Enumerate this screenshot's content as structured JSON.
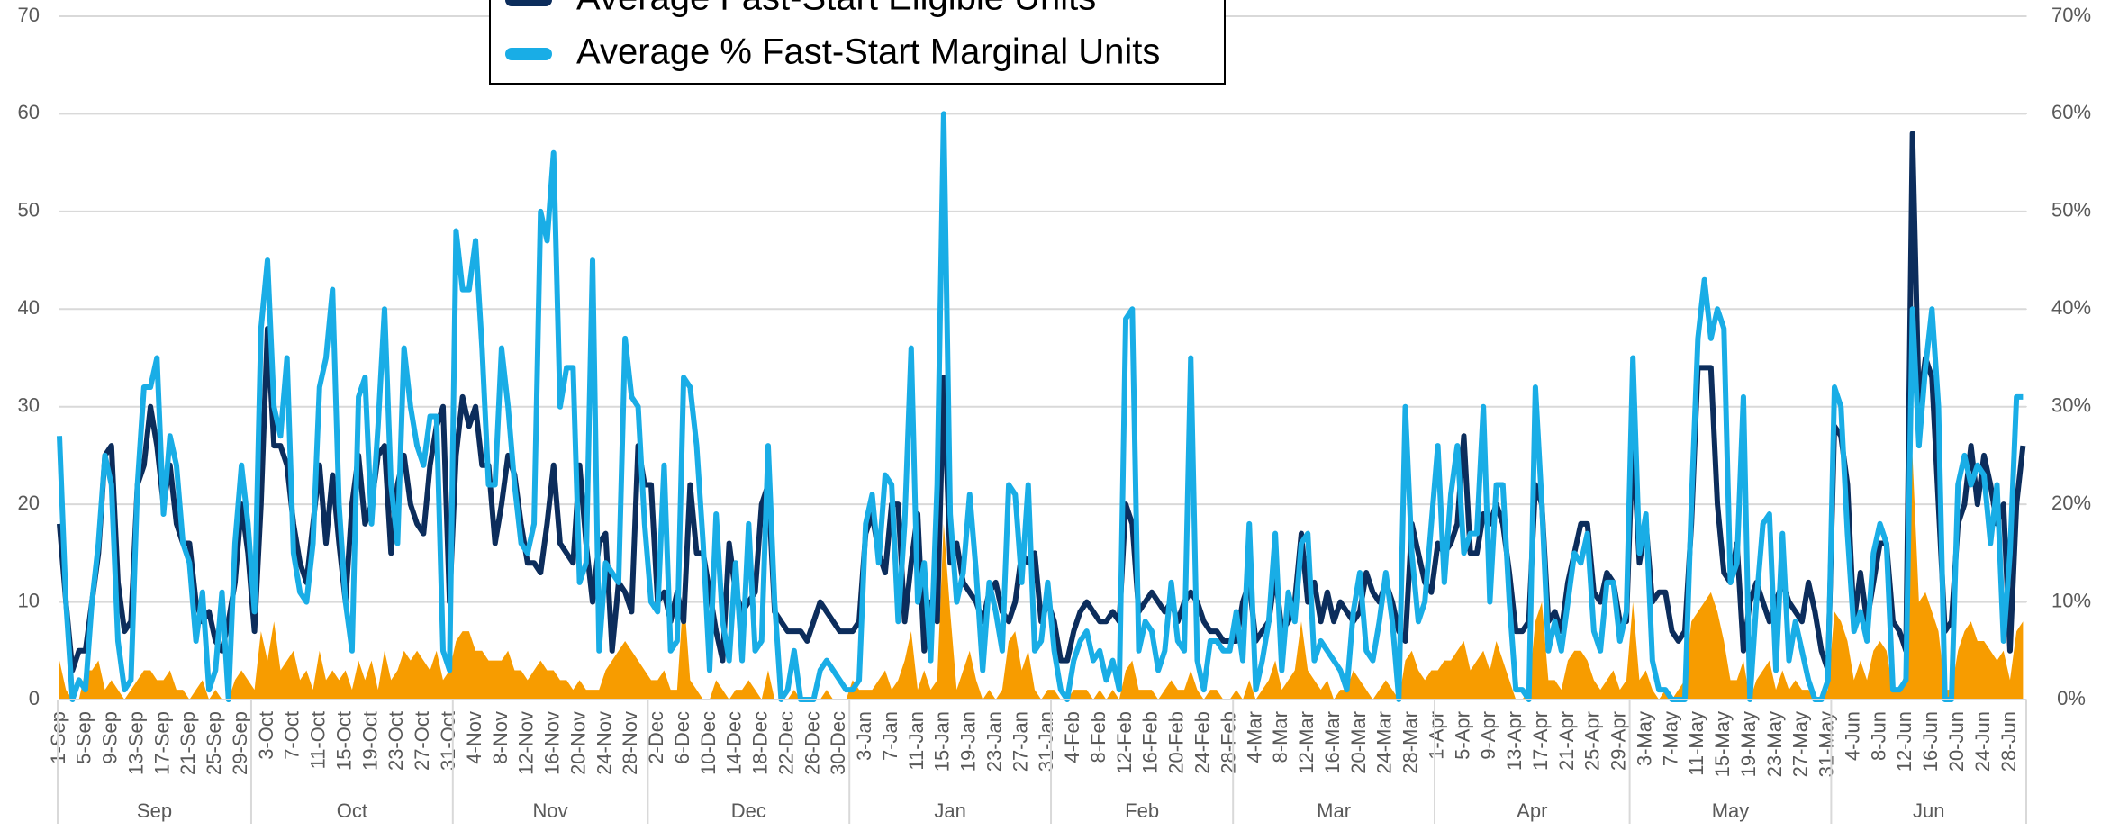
{
  "chart_data": {
    "type": "line",
    "legend": [
      "Average Fast-Start Eligible Units",
      "Average % Fast-Start Marginal Units"
    ],
    "categories": [
      "1-Sep",
      null,
      null,
      null,
      "5-Sep",
      null,
      null,
      null,
      "9-Sep",
      null,
      null,
      null,
      "13-Sep",
      null,
      null,
      null,
      "17-Sep",
      null,
      null,
      null,
      "21-Sep",
      null,
      null,
      null,
      "25-Sep",
      null,
      null,
      null,
      "29-Sep",
      null,
      null,
      null,
      "3-Oct",
      null,
      null,
      null,
      "7-Oct",
      null,
      null,
      null,
      "11-Oct",
      null,
      null,
      null,
      "15-Oct",
      null,
      null,
      null,
      "19-Oct",
      null,
      null,
      null,
      "23-Oct",
      null,
      null,
      null,
      "27-Oct",
      null,
      null,
      null,
      "31-Oct",
      null,
      null,
      null,
      "4-Nov",
      null,
      null,
      null,
      "8-Nov",
      null,
      null,
      null,
      "12-Nov",
      null,
      null,
      null,
      "16-Nov",
      null,
      null,
      null,
      "20-Nov",
      null,
      null,
      null,
      "24-Nov",
      null,
      null,
      null,
      "28-Nov",
      null,
      null,
      null,
      "2-Dec",
      null,
      null,
      null,
      "6-Dec",
      null,
      null,
      null,
      "10-Dec",
      null,
      null,
      null,
      "14-Dec",
      null,
      null,
      null,
      "18-Dec",
      null,
      null,
      null,
      "22-Dec",
      null,
      null,
      null,
      "26-Dec",
      null,
      null,
      null,
      "30-Dec",
      null,
      null,
      null,
      "3-Jan",
      null,
      null,
      null,
      "7-Jan",
      null,
      null,
      null,
      "11-Jan",
      null,
      null,
      null,
      "15-Jan",
      null,
      null,
      null,
      "19-Jan",
      null,
      null,
      null,
      "23-Jan",
      null,
      null,
      null,
      "27-Jan",
      null,
      null,
      null,
      "31-Jan",
      null,
      null,
      null,
      "4-Feb",
      null,
      null,
      null,
      "8-Feb",
      null,
      null,
      null,
      "12-Feb",
      null,
      null,
      null,
      "16-Feb",
      null,
      null,
      null,
      "20-Feb",
      null,
      null,
      null,
      "24-Feb",
      null,
      null,
      null,
      "28-Feb",
      null,
      null,
      null,
      "4-Mar",
      null,
      null,
      null,
      "8-Mar",
      null,
      null,
      null,
      "12-Mar",
      null,
      null,
      null,
      "16-Mar",
      null,
      null,
      null,
      "20-Mar",
      null,
      null,
      null,
      "24-Mar",
      null,
      null,
      null,
      "28-Mar",
      null,
      null,
      null,
      "1-Apr",
      null,
      null,
      null,
      "5-Apr",
      null,
      null,
      null,
      "9-Apr",
      null,
      null,
      null,
      "13-Apr",
      null,
      null,
      null,
      "17-Apr",
      null,
      null,
      null,
      "21-Apr",
      null,
      null,
      null,
      "25-Apr",
      null,
      null,
      null,
      "29-Apr",
      null,
      null,
      null,
      "3-May",
      null,
      null,
      null,
      "7-May",
      null,
      null,
      null,
      "11-May",
      null,
      null,
      null,
      "15-May",
      null,
      null,
      null,
      "19-May",
      null,
      null,
      null,
      "23-May",
      null,
      null,
      null,
      "27-May",
      null,
      null,
      null,
      "31-May",
      null,
      null,
      null,
      "4-Jun",
      null,
      null,
      null,
      "8-Jun",
      null,
      null,
      null,
      "12-Jun",
      null,
      null,
      null,
      "16-Jun",
      null,
      null,
      null,
      "20-Jun",
      null,
      null,
      null,
      "24-Jun",
      null,
      null,
      null,
      "28-Jun",
      null,
      null
    ],
    "month_labels": [
      "Sep",
      "Oct",
      "Nov",
      "Dec",
      "Jan",
      "Feb",
      "Mar",
      "Apr",
      "May",
      "Jun"
    ],
    "series": [
      {
        "type": "area",
        "color": "#f79c00",
        "values": [
          4,
          1,
          0,
          0,
          3,
          3,
          4,
          1,
          2,
          1,
          0,
          1,
          2,
          3,
          3,
          2,
          2,
          3,
          1,
          1,
          0,
          1,
          2,
          0,
          1,
          0,
          0,
          2,
          3,
          2,
          1,
          7,
          4,
          8,
          3,
          4,
          5,
          2,
          3,
          1,
          5,
          2,
          3,
          2,
          3,
          1,
          4,
          2,
          4,
          1,
          5,
          2,
          3,
          5,
          4,
          5,
          4,
          3,
          5,
          2,
          3,
          6,
          7,
          7,
          5,
          5,
          4,
          4,
          4,
          5,
          3,
          3,
          2,
          3,
          4,
          3,
          3,
          2,
          2,
          1,
          2,
          1,
          1,
          1,
          3,
          4,
          5,
          6,
          5,
          4,
          3,
          2,
          2,
          3,
          1,
          1,
          11,
          2,
          1,
          0,
          0,
          2,
          1,
          0,
          1,
          1,
          2,
          1,
          0,
          3,
          0,
          0,
          0,
          1,
          0,
          0,
          0,
          0,
          1,
          0,
          0,
          0,
          2,
          1,
          1,
          1,
          2,
          3,
          1,
          2,
          4,
          7,
          1,
          3,
          1,
          2,
          18,
          9,
          1,
          3,
          5,
          2,
          0,
          1,
          0,
          1,
          6,
          7,
          3,
          5,
          1,
          0,
          1,
          1,
          0,
          0,
          1,
          1,
          1,
          0,
          1,
          0,
          1,
          0,
          3,
          4,
          1,
          1,
          1,
          0,
          1,
          2,
          1,
          1,
          3,
          1,
          0,
          1,
          1,
          0,
          0,
          1,
          0,
          2,
          0,
          1,
          2,
          4,
          1,
          2,
          3,
          8,
          3,
          2,
          1,
          2,
          0,
          1,
          1,
          3,
          2,
          1,
          0,
          1,
          2,
          1,
          0,
          4,
          5,
          3,
          2,
          3,
          3,
          4,
          4,
          5,
          6,
          3,
          4,
          5,
          3,
          6,
          4,
          2,
          0,
          0,
          1,
          8,
          10,
          2,
          2,
          1,
          4,
          5,
          5,
          4,
          2,
          1,
          2,
          3,
          1,
          2,
          10,
          2,
          3,
          1,
          0,
          1,
          0,
          1,
          2,
          8,
          9,
          10,
          11,
          9,
          6,
          2,
          2,
          4,
          0,
          2,
          3,
          4,
          1,
          3,
          1,
          2,
          1,
          1,
          0,
          0,
          1,
          9,
          8,
          6,
          2,
          4,
          2,
          5,
          6,
          5,
          1,
          1,
          3,
          25,
          10,
          11,
          9,
          7,
          1,
          1,
          5,
          7,
          8,
          6,
          6,
          5,
          4,
          5,
          2,
          7,
          8
        ]
      },
      {
        "name": "Average Fast-Start Eligible Units",
        "type": "line",
        "color": "#0c2d5c",
        "values": [
          18,
          10,
          3,
          5,
          5,
          10,
          15,
          25,
          26,
          12,
          7,
          8,
          22,
          24,
          30,
          26,
          20,
          24,
          18,
          16,
          16,
          10,
          8,
          9,
          6,
          5,
          8,
          12,
          20,
          15,
          7,
          20,
          38,
          26,
          26,
          24,
          18,
          14,
          12,
          18,
          24,
          16,
          23,
          16,
          10,
          20,
          25,
          18,
          20,
          25,
          26,
          15,
          22,
          25,
          20,
          18,
          17,
          24,
          28,
          30,
          10,
          25,
          31,
          28,
          30,
          24,
          24,
          16,
          20,
          25,
          23,
          18,
          14,
          14,
          13,
          18,
          24,
          16,
          15,
          14,
          24,
          16,
          10,
          16,
          17,
          5,
          12,
          11,
          9,
          26,
          22,
          22,
          10,
          11,
          8,
          11,
          8,
          22,
          15,
          15,
          11,
          7,
          4,
          16,
          11,
          9,
          10,
          11,
          20,
          22,
          9,
          8,
          7,
          7,
          7,
          6,
          8,
          10,
          9,
          8,
          7,
          7,
          7,
          8,
          17,
          19,
          15,
          13,
          20,
          20,
          8,
          14,
          19,
          5,
          10,
          8,
          33,
          14,
          16,
          12,
          11,
          10,
          8,
          11,
          12,
          9,
          8,
          10,
          15,
          14,
          15,
          8,
          10,
          8,
          4,
          4,
          7,
          9,
          10,
          9,
          8,
          8,
          9,
          8,
          20,
          18,
          9,
          10,
          11,
          10,
          9,
          10,
          8,
          10,
          11,
          10,
          8,
          7,
          7,
          6,
          6,
          6,
          10,
          12,
          6,
          7,
          8,
          13,
          7,
          8,
          10,
          17,
          10,
          12,
          8,
          11,
          8,
          10,
          9,
          8,
          9,
          13,
          11,
          10,
          12,
          10,
          7,
          6,
          18,
          15,
          12,
          11,
          16,
          15,
          16,
          18,
          27,
          15,
          15,
          19,
          18,
          20,
          18,
          13,
          7,
          7,
          8,
          22,
          20,
          8,
          9,
          7,
          12,
          15,
          18,
          18,
          11,
          10,
          13,
          12,
          8,
          8,
          27,
          14,
          18,
          10,
          11,
          11,
          7,
          6,
          7,
          18,
          34,
          34,
          34,
          20,
          13,
          12,
          16,
          5,
          10,
          12,
          10,
          8,
          10,
          12,
          10,
          9,
          8,
          12,
          9,
          5,
          3,
          28,
          27,
          22,
          8,
          13,
          8,
          12,
          16,
          16,
          8,
          7,
          5,
          58,
          30,
          35,
          33,
          20,
          7,
          8,
          18,
          20,
          26,
          20,
          25,
          22,
          18,
          20,
          5,
          20,
          26
        ]
      },
      {
        "name": "Average % Fast-Start Marginal Units",
        "type": "line",
        "axis": "y2",
        "color": "#19ade6",
        "values": [
          27,
          10,
          0,
          2,
          1,
          10,
          16,
          25,
          22,
          6,
          1,
          2,
          22,
          32,
          32,
          35,
          19,
          27,
          24,
          16,
          14,
          6,
          11,
          1,
          3,
          11,
          0,
          16,
          24,
          18,
          9,
          38,
          45,
          30,
          27,
          35,
          15,
          11,
          10,
          16,
          32,
          35,
          42,
          20,
          10,
          5,
          31,
          33,
          18,
          28,
          40,
          22,
          16,
          36,
          30,
          26,
          24,
          29,
          29,
          5,
          3,
          48,
          42,
          42,
          47,
          36,
          22,
          22,
          36,
          30,
          22,
          16,
          15,
          18,
          50,
          47,
          56,
          30,
          34,
          34,
          12,
          14,
          45,
          5,
          14,
          13,
          12,
          37,
          31,
          30,
          18,
          10,
          9,
          24,
          5,
          6,
          33,
          32,
          26,
          16,
          3,
          19,
          8,
          4,
          14,
          4,
          18,
          5,
          6,
          26,
          10,
          0,
          1,
          5,
          0,
          0,
          0,
          3,
          4,
          3,
          2,
          1,
          1,
          2,
          18,
          21,
          14,
          23,
          22,
          8,
          18,
          36,
          10,
          14,
          4,
          22,
          60,
          19,
          10,
          13,
          21,
          13,
          3,
          12,
          9,
          5,
          22,
          21,
          12,
          22,
          5,
          6,
          12,
          5,
          1,
          0,
          4,
          6,
          7,
          4,
          5,
          2,
          4,
          1,
          39,
          40,
          5,
          8,
          7,
          3,
          5,
          12,
          6,
          5,
          35,
          4,
          1,
          6,
          6,
          5,
          5,
          9,
          4,
          18,
          1,
          4,
          8,
          17,
          3,
          11,
          8,
          16,
          17,
          4,
          6,
          5,
          4,
          3,
          1,
          9,
          13,
          5,
          4,
          8,
          13,
          8,
          0,
          30,
          15,
          8,
          10,
          18,
          26,
          12,
          21,
          26,
          15,
          17,
          17,
          30,
          10,
          22,
          22,
          10,
          1,
          1,
          0,
          32,
          20,
          5,
          8,
          5,
          10,
          15,
          14,
          17,
          7,
          5,
          12,
          12,
          6,
          9,
          35,
          15,
          19,
          4,
          1,
          1,
          0,
          0,
          0,
          20,
          37,
          43,
          37,
          40,
          38,
          12,
          14,
          31,
          0,
          10,
          18,
          19,
          3,
          17,
          4,
          8,
          5,
          2,
          0,
          0,
          2,
          32,
          30,
          17,
          7,
          9,
          6,
          15,
          18,
          16,
          1,
          1,
          2,
          40,
          26,
          34,
          40,
          30,
          0,
          0,
          22,
          25,
          22,
          24,
          23,
          16,
          22,
          6,
          15,
          31,
          31
        ]
      }
    ],
    "ylim": [
      0,
      70
    ],
    "yticks": [
      0,
      10,
      20,
      30,
      40,
      50,
      60,
      70
    ],
    "y2lim": [
      0,
      70
    ],
    "y2ticks": [
      {
        "value": 0,
        "label": "0%"
      },
      {
        "value": 10,
        "label": "10%"
      },
      {
        "value": 20,
        "label": "20%"
      },
      {
        "value": 30,
        "label": "30%"
      },
      {
        "value": 40,
        "label": "40%"
      },
      {
        "value": 50,
        "label": "50%"
      },
      {
        "value": 60,
        "label": "60%"
      },
      {
        "value": 70,
        "label": "70%"
      }
    ],
    "grid": true
  }
}
